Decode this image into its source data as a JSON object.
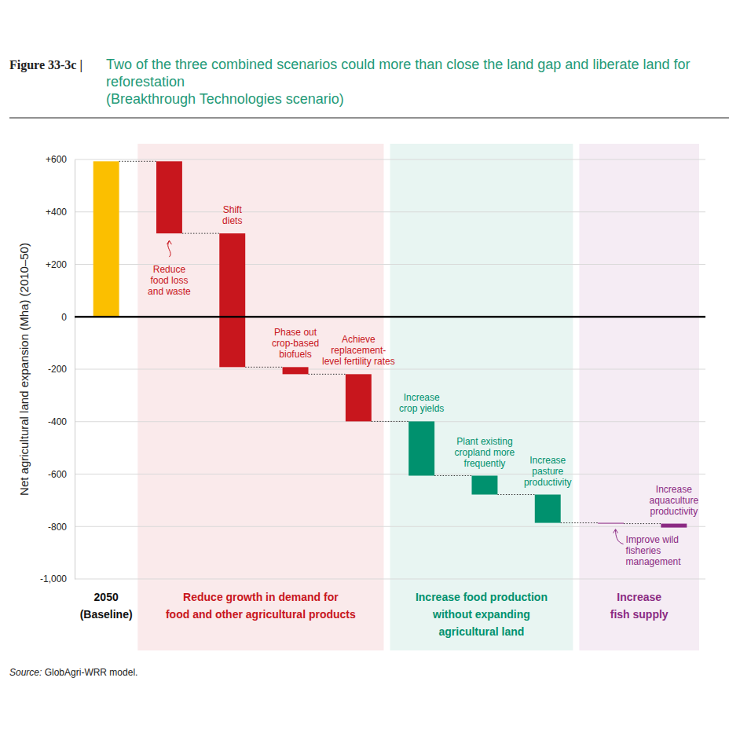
{
  "chart_data": {
    "type": "waterfall",
    "figure_label": "Figure 33-3c |",
    "title": "Two of the three combined scenarios could more than close the land gap and liberate land for reforestation",
    "subtitle": "(Breakthrough Technologies scenario)",
    "y_label": "Net agricultural land expansion (Mha) (2010–50)",
    "source": "Source: GlobAgri-WRR model.",
    "categories": [
      "2050\n(Baseline)",
      "Reduce\nfood loss\nand waste",
      "Shift\ndiets",
      "Phase out\ncrop-based\nbiofuels",
      "Achieve\nreplacement-\nlevel fertility rates",
      "Increase\ncrop yields",
      "Plant existing\ncropland more\nfrequently",
      "Increase\npasture\nproductivity",
      "Improve wild\nfisheries\nmanagement",
      "Increase\naquaculture\nproductivity"
    ],
    "values": [
      593,
      -275,
      -510,
      -27,
      -180,
      -207,
      -72,
      -108,
      -3,
      -15
    ],
    "colors": [
      "#fbbf00",
      "#c8161d",
      "#c8161d",
      "#c8161d",
      "#c8161d",
      "#00916e",
      "#00916e",
      "#00916e",
      "#8b2a83",
      "#8b2a83"
    ],
    "groups": [
      {
        "label": "Reduce growth in demand for\nfood and other agricultural products",
        "color": "#c8161d",
        "members": [
          1,
          2,
          3,
          4
        ]
      },
      {
        "label": "Increase food production\nwithout expanding\nagricultural land",
        "color": "#00916e",
        "members": [
          5,
          6,
          7
        ]
      },
      {
        "label": "Increase\nfish supply",
        "color": "#8b2a83",
        "members": [
          8,
          9
        ]
      }
    ],
    "ylim": [
      -1000,
      600
    ],
    "yticks": [
      {
        "value": 600,
        "label": "+600"
      },
      {
        "value": 400,
        "label": "+400"
      },
      {
        "value": 200,
        "label": "+200"
      },
      0,
      -200,
      -400,
      -600,
      -800,
      {
        "value": -1000,
        "label": "-1,000"
      }
    ],
    "grid": true
  }
}
